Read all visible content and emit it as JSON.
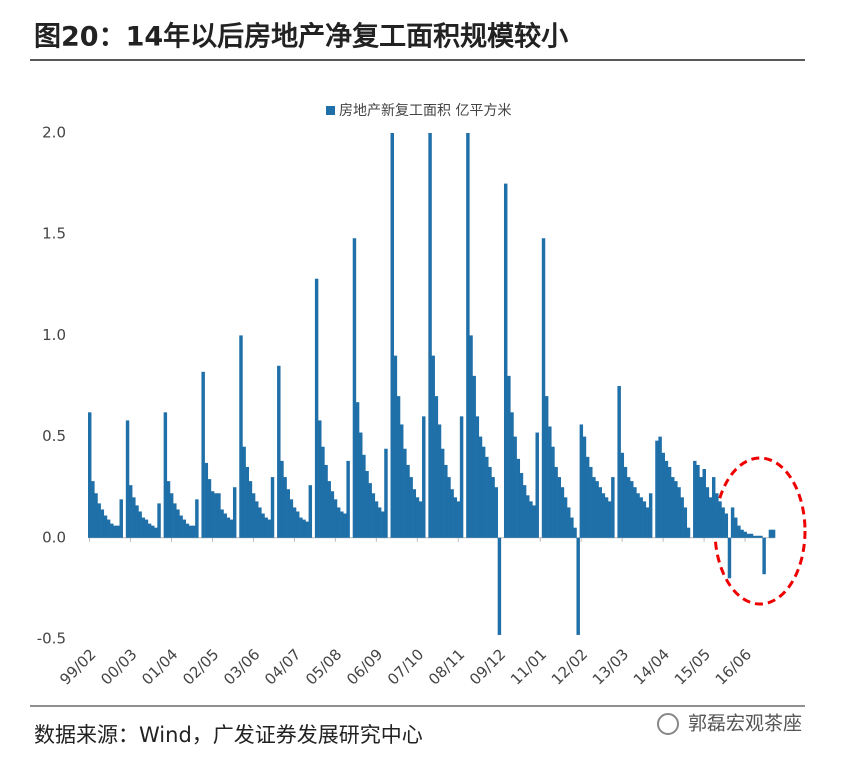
{
  "title": "图20：14年以后房地产净复工面积规模较小",
  "source": "数据来源：Wind，广发证券发展研究中心",
  "watermark": "郭磊宏观茶座",
  "chart_data": {
    "type": "bar",
    "categories": [
      "99/02",
      null,
      null,
      null,
      null,
      null,
      null,
      null,
      null,
      null,
      null,
      null,
      null,
      "00/03",
      null,
      null,
      null,
      null,
      null,
      null,
      null,
      null,
      null,
      null,
      null,
      null,
      "01/04",
      null,
      null,
      null,
      null,
      null,
      null,
      null,
      null,
      null,
      null,
      null,
      null,
      "02/05",
      null,
      null,
      null,
      null,
      null,
      null,
      null,
      null,
      null,
      null,
      null,
      null,
      "03/06",
      null,
      null,
      null,
      null,
      null,
      null,
      null,
      null,
      null,
      null,
      null,
      null,
      "04/07",
      null,
      null,
      null,
      null,
      null,
      null,
      null,
      null,
      null,
      null,
      null,
      null,
      "05/08",
      null,
      null,
      null,
      null,
      null,
      null,
      null,
      null,
      null,
      null,
      null,
      null,
      "06/09",
      null,
      null,
      null,
      null,
      null,
      null,
      null,
      null,
      null,
      null,
      null,
      null,
      "07/10",
      null,
      null,
      null,
      null,
      null,
      null,
      null,
      null,
      null,
      null,
      null,
      null,
      "08/11",
      null,
      null,
      null,
      null,
      null,
      null,
      null,
      null,
      null,
      null,
      null,
      null,
      "09/12",
      null,
      null,
      null,
      null,
      null,
      null,
      null,
      null,
      null,
      null,
      null,
      null,
      "11/01",
      null,
      null,
      null,
      null,
      null,
      null,
      null,
      null,
      null,
      null,
      null,
      null,
      "12/02",
      null,
      null,
      null,
      null,
      null,
      null,
      null,
      null,
      null,
      null,
      null,
      null,
      "13/03",
      null,
      null,
      null,
      null,
      null,
      null,
      null,
      null,
      null,
      null,
      null,
      null,
      "14/04",
      null,
      null,
      null,
      null,
      null,
      null,
      null,
      null,
      null,
      null,
      null,
      null,
      "15/05",
      null,
      null,
      null,
      null,
      null,
      null,
      null,
      null,
      null,
      null,
      null,
      null,
      "16/06",
      null,
      null,
      null,
      null,
      null,
      null,
      null,
      null,
      null
    ],
    "series": [
      {
        "name": "房地产新复工面积 亿平方米",
        "color": "#1f6fa8",
        "values": [
          0.62,
          0.28,
          0.22,
          0.17,
          0.14,
          0.11,
          0.09,
          0.07,
          0.06,
          0.06,
          0.19,
          0,
          0.58,
          0.26,
          0.2,
          0.16,
          0.13,
          0.1,
          0.09,
          0.07,
          0.06,
          0.05,
          0.17,
          0,
          0.62,
          0.28,
          0.22,
          0.17,
          0.14,
          0.11,
          0.09,
          0.07,
          0.06,
          0.06,
          0.19,
          0,
          0.82,
          0.37,
          0.29,
          0.23,
          0.22,
          0.22,
          0.14,
          0.12,
          0.1,
          0.09,
          0.25,
          0,
          1.0,
          0.45,
          0.35,
          0.28,
          0.22,
          0.18,
          0.15,
          0.12,
          0.1,
          0.09,
          0.3,
          0,
          0.85,
          0.38,
          0.3,
          0.24,
          0.19,
          0.15,
          0.13,
          0.1,
          0.09,
          0.08,
          0.26,
          0,
          1.28,
          0.58,
          0.45,
          0.36,
          0.28,
          0.23,
          0.19,
          0.15,
          0.13,
          0.12,
          0.38,
          0,
          1.48,
          0.67,
          0.52,
          0.41,
          0.33,
          0.27,
          0.22,
          0.18,
          0.15,
          0.13,
          0.44,
          0,
          2.0,
          0.9,
          0.7,
          0.56,
          0.44,
          0.36,
          0.3,
          0.24,
          0.2,
          0.18,
          0.6,
          0,
          2.0,
          0.9,
          0.7,
          0.56,
          0.44,
          0.36,
          0.3,
          0.24,
          0.2,
          0.18,
          0.6,
          0,
          2.0,
          1.0,
          0.8,
          0.6,
          0.5,
          0.45,
          0.4,
          0.35,
          0.3,
          0.25,
          -0.48,
          0,
          1.75,
          0.8,
          0.62,
          0.5,
          0.39,
          0.32,
          0.26,
          0.21,
          0.18,
          0.16,
          0.52,
          0,
          1.48,
          0.7,
          0.55,
          0.45,
          0.35,
          0.3,
          0.25,
          0.2,
          0.15,
          0.1,
          0.05,
          -0.48,
          0.56,
          0.5,
          0.4,
          0.35,
          0.3,
          0.28,
          0.25,
          0.22,
          0.2,
          0.18,
          0.3,
          0,
          0.75,
          0.42,
          0.35,
          0.3,
          0.28,
          0.25,
          0.22,
          0.2,
          0.18,
          0.15,
          0.22,
          0,
          0.48,
          0.5,
          0.42,
          0.38,
          0.35,
          0.3,
          0.28,
          0.25,
          0.2,
          0.15,
          0.05,
          0,
          0.38,
          0.36,
          0.3,
          0.34,
          0.25,
          0.2,
          0.3,
          0.22,
          0.18,
          0.15,
          0.12,
          -0.2,
          0.15,
          0.1,
          0.06,
          0.04,
          0.03,
          0.02,
          0.02,
          0.01,
          0.01,
          0.01,
          -0.18,
          0,
          0.04,
          0.04
        ]
      }
    ],
    "ylim": [
      -0.5,
      2.0
    ],
    "yticks": [
      {
        "value": -0.5,
        "label": "-0.5"
      },
      {
        "value": 0,
        "label": "0.0"
      },
      {
        "value": 0.5,
        "label": "0.5"
      },
      {
        "value": 1.0,
        "label": "1.0"
      },
      {
        "value": 1.5,
        "label": "1.5"
      },
      {
        "value": 2.0,
        "label": "2.0"
      }
    ],
    "legend": "top"
  }
}
